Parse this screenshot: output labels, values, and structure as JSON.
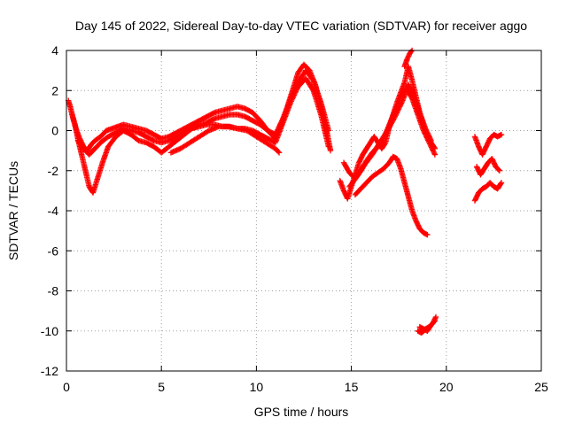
{
  "chart_data": {
    "type": "scatter",
    "title": "Day 145 of 2022, Sidereal Day-to-day VTEC variation (SDTVAR) for receiver aggo",
    "xlabel": "GPS time / hours",
    "ylabel": "SDTVAR / TECUs",
    "xlim": [
      0,
      25
    ],
    "ylim": [
      -12,
      4
    ],
    "xticks": [
      "0",
      "5",
      "10",
      "15",
      "20",
      "25"
    ],
    "yticks": [
      "-12",
      "-10",
      "-8",
      "-6",
      "-4",
      "-2",
      "0",
      "2",
      "4"
    ],
    "grid": true,
    "marker": "+",
    "color": "#ff0000",
    "series": [
      {
        "name": "tracks",
        "segments": [
          {
            "x": [
              0.1,
              0.2,
              0.35,
              0.5,
              0.7,
              0.9,
              1.1,
              1.3,
              1.5,
              1.8,
              2.1,
              2.4,
              2.7,
              3.0,
              3.4,
              3.8,
              4.2,
              4.6,
              5.0,
              5.4,
              5.8,
              6.2,
              6.6,
              7.0,
              7.4,
              7.8,
              8.2,
              8.6,
              9.0,
              9.4,
              9.8,
              10.2,
              10.6,
              11.0,
              11.3,
              11.6,
              11.9,
              12.2,
              12.5,
              12.8,
              13.1,
              13.4,
              13.7,
              13.9
            ],
            "y": [
              1.5,
              1.2,
              0.6,
              0.1,
              -0.4,
              -0.8,
              -1.0,
              -0.7,
              -0.5,
              -0.3,
              0.0,
              0.1,
              0.2,
              0.3,
              0.2,
              0.1,
              0.0,
              -0.2,
              -0.4,
              -0.3,
              -0.1,
              0.1,
              0.3,
              0.5,
              0.7,
              0.9,
              1.0,
              1.1,
              1.2,
              1.1,
              0.9,
              0.5,
              0.0,
              -0.4,
              0.3,
              1.1,
              2.0,
              2.9,
              3.3,
              3.0,
              2.3,
              1.2,
              0.0,
              -1.0
            ]
          },
          {
            "x": [
              0.3,
              0.45,
              0.6,
              0.8,
              1.0,
              1.2,
              1.4,
              1.6,
              1.9,
              2.2,
              2.6,
              3.0,
              3.4,
              3.8,
              4.2,
              4.6,
              5.0,
              5.4,
              5.8,
              6.2,
              6.6,
              7.0,
              7.4,
              7.8,
              8.2,
              8.6,
              9.0,
              9.4,
              9.8,
              10.2,
              10.6,
              11.0,
              11.4,
              11.8,
              12.2,
              12.6,
              13.0,
              13.4,
              13.8
            ],
            "y": [
              0.8,
              0.3,
              -0.4,
              -1.2,
              -2.0,
              -2.8,
              -3.1,
              -2.5,
              -1.6,
              -0.8,
              -0.3,
              0.0,
              -0.2,
              -0.5,
              -0.6,
              -0.8,
              -1.1,
              -0.8,
              -0.5,
              -0.2,
              0.1,
              0.2,
              0.3,
              0.3,
              0.2,
              0.2,
              0.1,
              0.1,
              0.0,
              -0.2,
              -0.4,
              -0.6,
              0.4,
              1.4,
              2.2,
              2.6,
              2.0,
              0.8,
              -0.8
            ]
          },
          {
            "x": [
              0.6,
              0.9,
              1.2,
              1.5,
              1.8,
              2.2,
              2.6,
              3.0,
              3.4,
              3.8,
              4.2,
              4.6,
              5.0,
              5.4,
              5.8,
              6.2,
              6.6,
              7.0,
              7.4,
              7.8,
              8.2,
              8.6,
              9.0,
              9.4,
              9.8,
              10.2,
              10.6,
              11.0,
              11.4,
              11.8,
              12.2,
              12.6,
              13.0,
              13.4,
              13.8
            ],
            "y": [
              -0.5,
              -0.9,
              -1.2,
              -0.9,
              -0.6,
              -0.3,
              -0.1,
              0.1,
              0.0,
              -0.1,
              -0.3,
              -0.5,
              -0.6,
              -0.5,
              -0.3,
              -0.1,
              0.1,
              0.3,
              0.4,
              0.6,
              0.7,
              0.8,
              0.8,
              0.7,
              0.5,
              0.3,
              0.0,
              -0.2,
              0.6,
              1.6,
              2.4,
              3.0,
              2.5,
              1.4,
              0.0
            ]
          },
          {
            "x": [
              5.5,
              6.0,
              6.5,
              7.0,
              7.5,
              8.0,
              8.5,
              9.0,
              9.5,
              10.0,
              10.5,
              11.0,
              11.2
            ],
            "y": [
              -1.1,
              -0.9,
              -0.6,
              -0.3,
              0.0,
              0.2,
              0.2,
              0.1,
              0.0,
              -0.3,
              -0.6,
              -0.9,
              -1.1
            ]
          },
          {
            "x": [
              14.4,
              14.6,
              14.8,
              15.0,
              15.2,
              15.4,
              15.6,
              15.8,
              16.0,
              16.2,
              16.4,
              16.6,
              16.8,
              17.0,
              17.2,
              17.4,
              17.6,
              17.8,
              18.0,
              18.2,
              18.4,
              18.6,
              18.8,
              19.0,
              19.2,
              19.4
            ],
            "y": [
              -2.5,
              -3.0,
              -3.4,
              -2.8,
              -2.2,
              -1.6,
              -1.2,
              -0.9,
              -0.6,
              -0.3,
              -0.6,
              -0.9,
              -0.6,
              0.2,
              0.8,
              1.4,
              1.9,
              2.4,
              3.2,
              2.5,
              1.7,
              0.9,
              0.2,
              -0.3,
              -0.6,
              -0.9
            ]
          },
          {
            "x": [
              14.6,
              14.9,
              15.2,
              15.5,
              15.8,
              16.1,
              16.4,
              16.7,
              17.0,
              17.3,
              17.6,
              17.9,
              18.2,
              18.5,
              18.8,
              19.1,
              19.4
            ],
            "y": [
              -1.6,
              -2.1,
              -2.4,
              -2.0,
              -1.5,
              -1.1,
              -0.8,
              -0.4,
              0.3,
              1.0,
              1.7,
              2.1,
              1.6,
              0.8,
              0.0,
              -0.6,
              -1.2
            ]
          },
          {
            "x": [
              14.9,
              15.3,
              15.7,
              16.1,
              16.5,
              16.9,
              17.3,
              17.7,
              18.0,
              18.3,
              18.6,
              18.9,
              19.2
            ],
            "y": [
              -2.8,
              -2.3,
              -1.7,
              -1.2,
              -0.6,
              0.0,
              0.7,
              1.5,
              2.3,
              1.7,
              0.9,
              0.1,
              -0.5
            ]
          },
          {
            "x": [
              15.2,
              15.5,
              15.8,
              16.1,
              16.4,
              16.7,
              17.0,
              17.2,
              17.4,
              17.6,
              17.8,
              18.0,
              18.2,
              18.4,
              18.6,
              18.8,
              19.0
            ],
            "y": [
              -3.2,
              -2.9,
              -2.6,
              -2.3,
              -2.1,
              -1.9,
              -1.6,
              -1.3,
              -1.4,
              -1.9,
              -2.6,
              -3.3,
              -4.0,
              -4.5,
              -4.9,
              -5.1,
              -5.2
            ]
          },
          {
            "x": [
              17.8,
              17.95,
              18.1,
              18.2
            ],
            "y": [
              3.2,
              3.6,
              3.9,
              4.0
            ]
          },
          {
            "x": [
              18.5,
              18.7,
              18.9,
              19.1,
              19.3,
              19.45
            ],
            "y": [
              -10.0,
              -10.1,
              -9.9,
              -9.8,
              -9.6,
              -9.3
            ]
          },
          {
            "x": [
              18.6,
              18.8,
              19.0,
              19.2,
              19.4
            ],
            "y": [
              -9.8,
              -9.9,
              -10.0,
              -9.7,
              -9.5
            ]
          },
          {
            "x": [
              21.5,
              21.7,
              21.9,
              22.1,
              22.3,
              22.5,
              22.7,
              22.9
            ],
            "y": [
              -0.3,
              -0.8,
              -1.2,
              -0.8,
              -0.4,
              -0.2,
              -0.3,
              -0.2
            ]
          },
          {
            "x": [
              21.6,
              21.8,
              22.0,
              22.2,
              22.4,
              22.6,
              22.8
            ],
            "y": [
              -1.8,
              -2.2,
              -1.9,
              -1.6,
              -1.4,
              -1.8,
              -2.0
            ]
          },
          {
            "x": [
              21.5,
              21.7,
              21.9,
              22.1,
              22.3,
              22.5,
              22.7,
              22.9
            ],
            "y": [
              -3.5,
              -3.1,
              -2.9,
              -2.8,
              -2.6,
              -2.8,
              -2.9,
              -2.6
            ]
          }
        ]
      }
    ]
  }
}
